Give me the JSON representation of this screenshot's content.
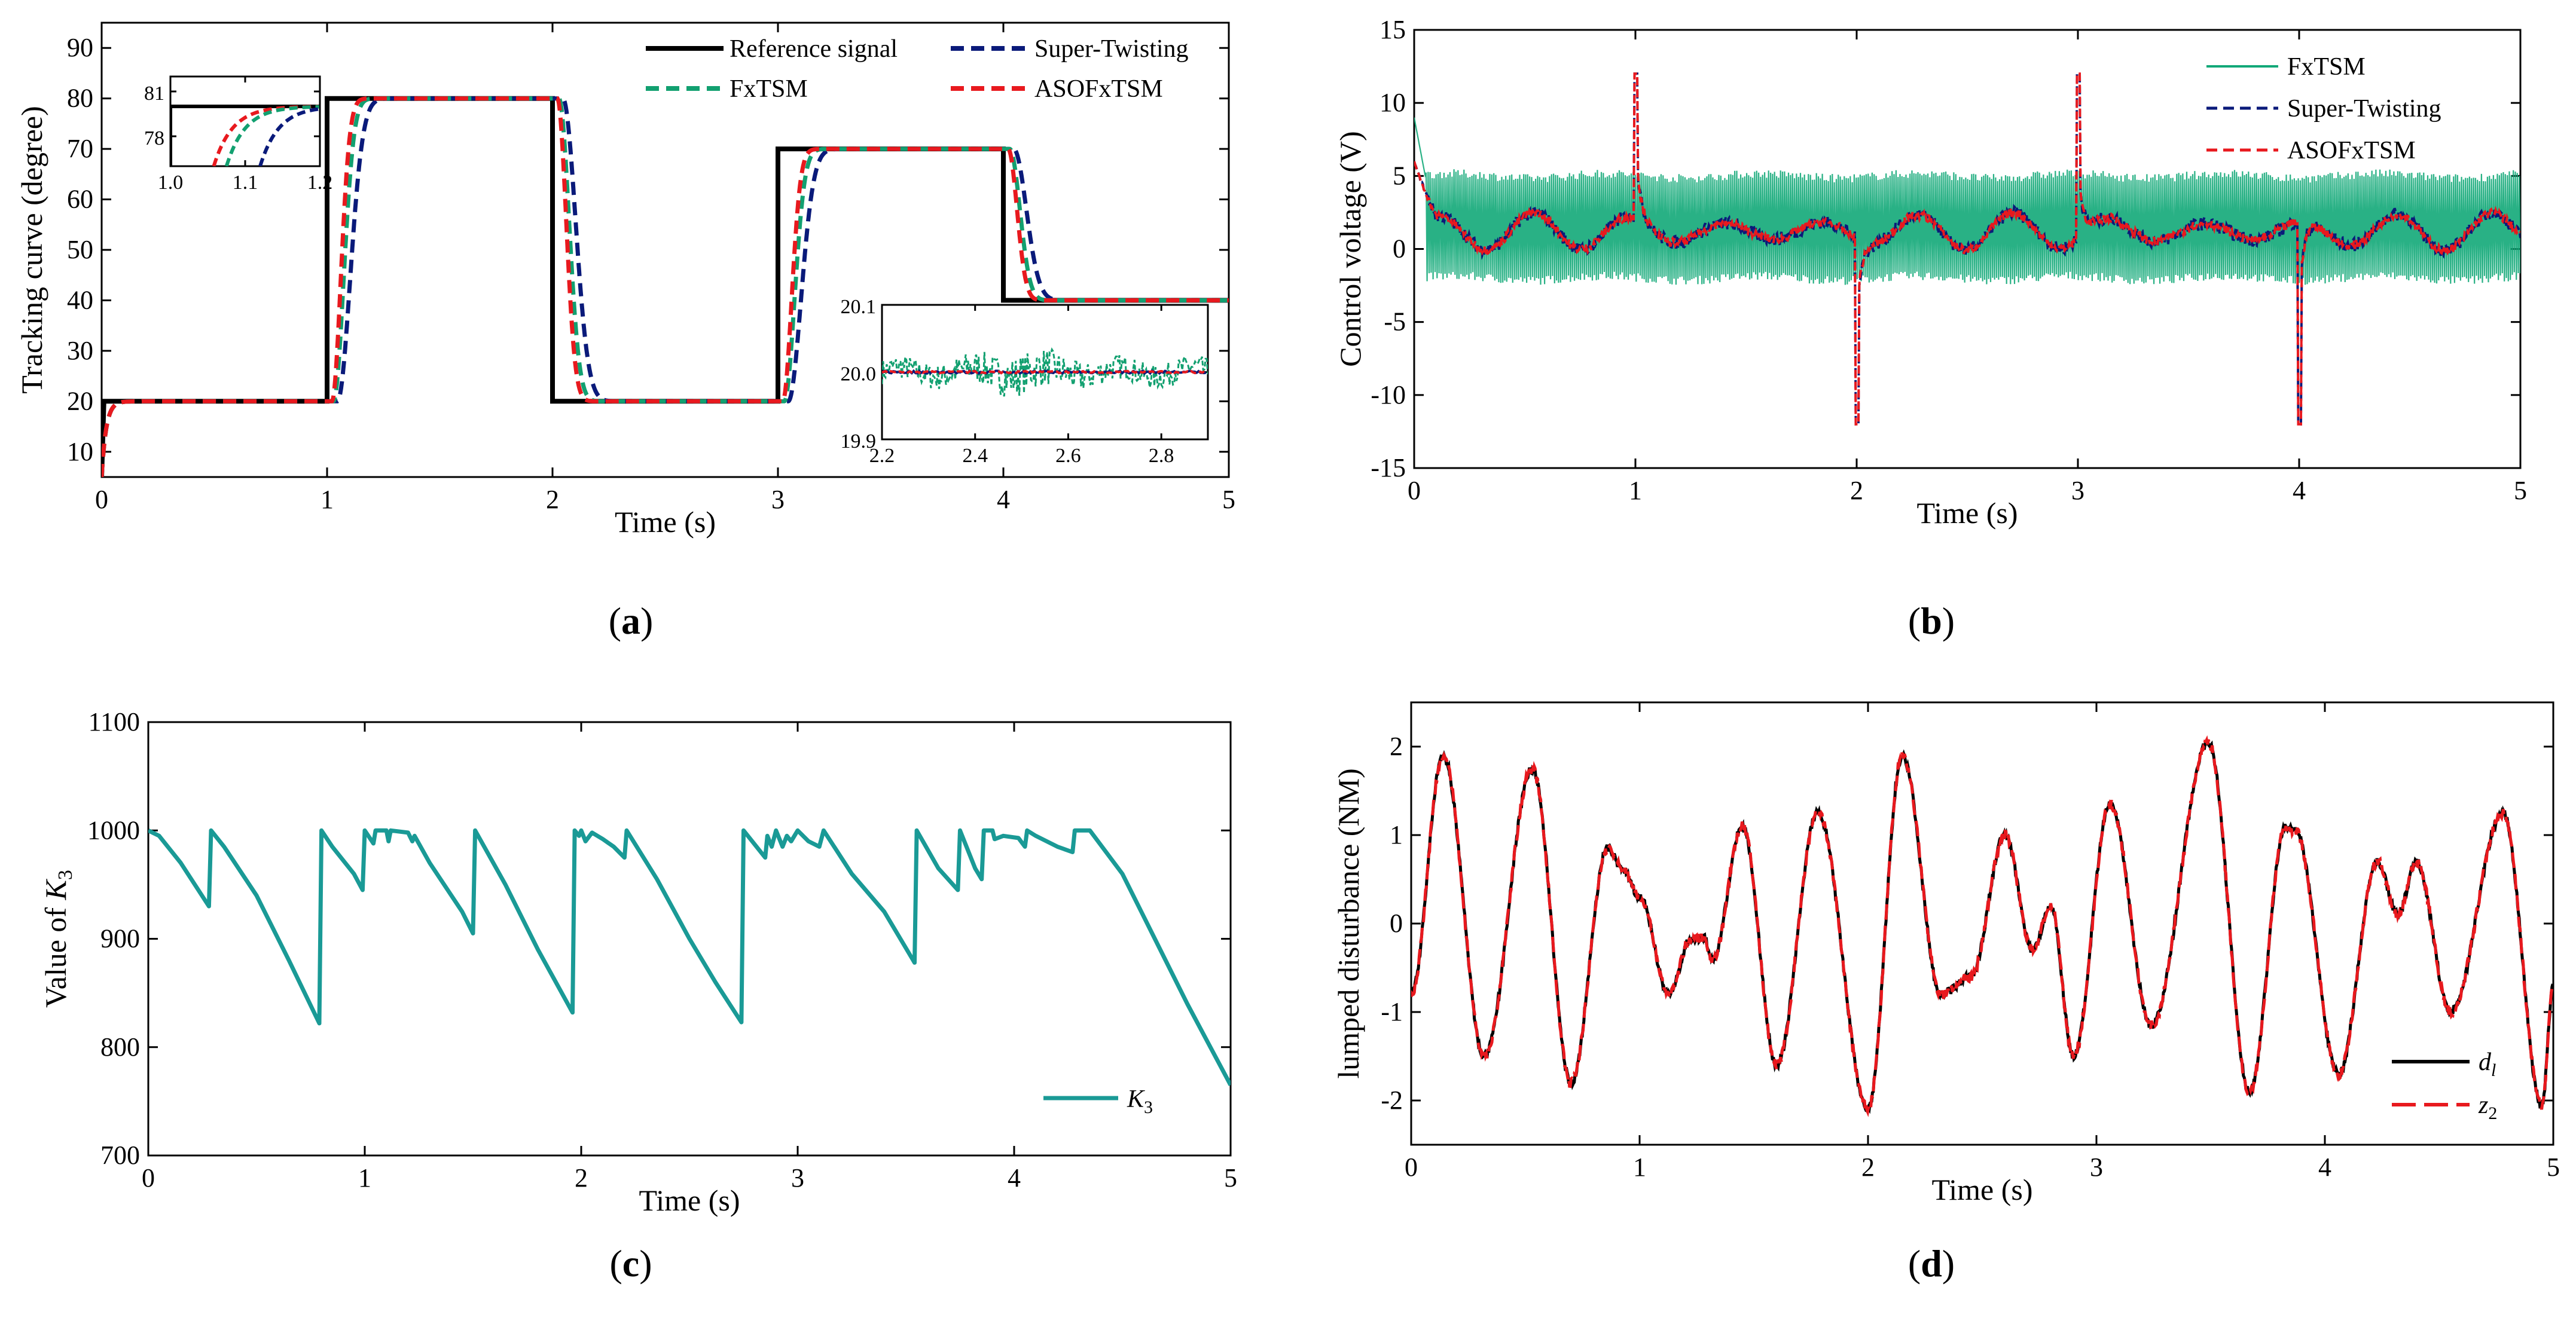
{
  "figure": {
    "captions": [
      {
        "open": "(",
        "letter": "a",
        "close": ")"
      },
      {
        "open": "(",
        "letter": "b",
        "close": ")"
      },
      {
        "open": "(",
        "letter": "c",
        "close": ")"
      },
      {
        "open": "(",
        "letter": "d",
        "close": ")"
      }
    ]
  },
  "chart_data": [
    {
      "id": "a",
      "type": "line",
      "xlabel": "Time (s)",
      "ylabel": "Tracking curve (degree)",
      "xlim": [
        0,
        5
      ],
      "ylim": [
        5,
        95
      ],
      "xticks": [
        0,
        1,
        2,
        3,
        4,
        5
      ],
      "yticks": [
        10,
        20,
        30,
        40,
        50,
        60,
        70,
        80,
        90
      ],
      "legend": [
        "Reference signal",
        "Super-Twisting",
        "FxTSM",
        "ASOFxTSM"
      ],
      "legend_position": "top-right",
      "series": [
        {
          "name": "Reference signal",
          "color": "#000000",
          "style": "solid",
          "points": [
            [
              0,
              5
            ],
            [
              0.01,
              20
            ],
            [
              1,
              20
            ],
            [
              1,
              80
            ],
            [
              2,
              80
            ],
            [
              2,
              20
            ],
            [
              3,
              20
            ],
            [
              3,
              70
            ],
            [
              4,
              70
            ],
            [
              4,
              40
            ],
            [
              5,
              40
            ]
          ]
        },
        {
          "name": "Super-Twisting",
          "color": "#0a1a7a",
          "style": "dashed",
          "delay": 0.13,
          "rise": 0.1
        },
        {
          "name": "FxTSM",
          "color": "#12a070",
          "style": "dashed",
          "delay": 0.08,
          "rise": 0.08
        },
        {
          "name": "ASOFxTSM",
          "color": "#e8191e",
          "style": "dashed",
          "delay": 0.06,
          "rise": 0.07
        }
      ],
      "insets": [
        {
          "xlim": [
            1.0,
            1.2
          ],
          "ylim": [
            76,
            82
          ],
          "xticks": [
            "1.0",
            "1.1",
            "1.2"
          ],
          "yticks": [
            "78",
            "81"
          ],
          "position": "top-left"
        },
        {
          "xlim": [
            2.2,
            2.9
          ],
          "ylim": [
            19.9,
            20.1
          ],
          "xticks": [
            "2.2",
            "2.4",
            "2.6",
            "2.8"
          ],
          "yticks": [
            "19.9",
            "20.0",
            "20.1"
          ],
          "position": "bottom-right"
        }
      ]
    },
    {
      "id": "b",
      "type": "line",
      "xlabel": "Time (s)",
      "ylabel": "Control voltage (V)",
      "xlim": [
        0,
        5
      ],
      "ylim": [
        -15,
        15
      ],
      "xticks": [
        0,
        1,
        2,
        3,
        4,
        5
      ],
      "yticks": [
        -15,
        -10,
        -5,
        0,
        5,
        10,
        15
      ],
      "legend": [
        "FxTSM",
        "Super-Twisting",
        "ASOFxTSM"
      ],
      "legend_position": "top-right",
      "series": [
        {
          "name": "FxTSM",
          "color": "#12a878",
          "style": "solid",
          "band": [
            -2,
            5
          ]
        },
        {
          "name": "Super-Twisting",
          "color": "#0a1a7a",
          "style": "dashed"
        },
        {
          "name": "ASOFxTSM",
          "color": "#e8191e",
          "style": "dashed"
        }
      ],
      "spikes": [
        [
          1.0,
          12
        ],
        [
          2.0,
          -12
        ],
        [
          3.0,
          12
        ],
        [
          4.0,
          -12
        ]
      ]
    },
    {
      "id": "c",
      "type": "line",
      "xlabel": "Time (s)",
      "ylabel_pre": "Value of ",
      "ylabel_var": "K",
      "ylabel_sub": "3",
      "xlim": [
        0,
        5
      ],
      "ylim": [
        700,
        1100
      ],
      "xticks": [
        0,
        1,
        2,
        3,
        4,
        5
      ],
      "yticks": [
        700,
        800,
        900,
        1000,
        1100
      ],
      "legend_var": "K",
      "legend_sub": "3",
      "legend_position": "bottom-right",
      "series": [
        {
          "name": "K3",
          "color": "#1a9a96",
          "points": [
            [
              0,
              1000
            ],
            [
              0.05,
              995
            ],
            [
              0.15,
              970
            ],
            [
              0.28,
              930
            ],
            [
              0.29,
              1000
            ],
            [
              0.35,
              985
            ],
            [
              0.5,
              940
            ],
            [
              0.65,
              880
            ],
            [
              0.79,
              822
            ],
            [
              0.8,
              1000
            ],
            [
              0.85,
              985
            ],
            [
              0.95,
              960
            ],
            [
              0.99,
              945
            ],
            [
              1.0,
              1000
            ],
            [
              1.04,
              988
            ],
            [
              1.05,
              1000
            ],
            [
              1.1,
              1000
            ],
            [
              1.11,
              990
            ],
            [
              1.12,
              1000
            ],
            [
              1.2,
              998
            ],
            [
              1.22,
              990
            ],
            [
              1.23,
              995
            ],
            [
              1.3,
              970
            ],
            [
              1.45,
              925
            ],
            [
              1.5,
              905
            ],
            [
              1.51,
              1000
            ],
            [
              1.65,
              950
            ],
            [
              1.8,
              890
            ],
            [
              1.96,
              832
            ],
            [
              1.97,
              1000
            ],
            [
              1.99,
              995
            ],
            [
              2.0,
              1000
            ],
            [
              2.02,
              990
            ],
            [
              2.05,
              998
            ],
            [
              2.1,
              992
            ],
            [
              2.15,
              985
            ],
            [
              2.2,
              975
            ],
            [
              2.21,
              1000
            ],
            [
              2.35,
              955
            ],
            [
              2.5,
              900
            ],
            [
              2.62,
              860
            ],
            [
              2.74,
              823
            ],
            [
              2.75,
              1000
            ],
            [
              2.85,
              975
            ],
            [
              2.86,
              995
            ],
            [
              2.88,
              985
            ],
            [
              2.9,
              1000
            ],
            [
              2.93,
              985
            ],
            [
              2.95,
              995
            ],
            [
              2.97,
              990
            ],
            [
              3.0,
              1000
            ],
            [
              3.05,
              990
            ],
            [
              3.1,
              985
            ],
            [
              3.12,
              1000
            ],
            [
              3.25,
              960
            ],
            [
              3.4,
              925
            ],
            [
              3.54,
              878
            ],
            [
              3.55,
              1000
            ],
            [
              3.65,
              965
            ],
            [
              3.74,
              945
            ],
            [
              3.75,
              1000
            ],
            [
              3.82,
              965
            ],
            [
              3.85,
              955
            ],
            [
              3.86,
              1000
            ],
            [
              3.9,
              1000
            ],
            [
              3.91,
              992
            ],
            [
              3.95,
              995
            ],
            [
              4.02,
              993
            ],
            [
              4.05,
              985
            ],
            [
              4.06,
              1000
            ],
            [
              4.1,
              995
            ],
            [
              4.2,
              985
            ],
            [
              4.27,
              980
            ],
            [
              4.28,
              1000
            ],
            [
              4.35,
              1000
            ],
            [
              4.5,
              960
            ],
            [
              4.65,
              900
            ],
            [
              4.8,
              840
            ],
            [
              5,
              765
            ]
          ]
        }
      ]
    },
    {
      "id": "d",
      "type": "line",
      "xlabel": "Time (s)",
      "ylabel": "lumped disturbance (NM)",
      "xlim": [
        0,
        5
      ],
      "ylim": [
        -2.5,
        2.5
      ],
      "xticks": [
        0,
        1,
        2,
        3,
        4,
        5
      ],
      "yticks": [
        -2,
        -1,
        0,
        1,
        2
      ],
      "legend": [
        {
          "var": "d",
          "sub": "l"
        },
        {
          "var": "z",
          "sub": "2"
        }
      ],
      "legend_position": "bottom-right",
      "series": [
        {
          "name": "d_l",
          "color": "#000000",
          "style": "solid"
        },
        {
          "name": "z_2",
          "color": "#e8191e",
          "style": "dashed"
        }
      ],
      "extrema": [
        [
          0,
          -0.8
        ],
        [
          0.14,
          1.9
        ],
        [
          0.32,
          -1.5
        ],
        [
          0.53,
          1.75
        ],
        [
          0.7,
          -1.8
        ],
        [
          0.86,
          0.85
        ],
        [
          0.93,
          0.6
        ],
        [
          1.0,
          0.3
        ],
        [
          1.13,
          -0.8
        ],
        [
          1.22,
          -0.2
        ],
        [
          1.28,
          -0.15
        ],
        [
          1.32,
          -0.4
        ],
        [
          1.45,
          1.1
        ],
        [
          1.6,
          -1.6
        ],
        [
          1.78,
          1.25
        ],
        [
          2.0,
          -2.1
        ],
        [
          2.15,
          1.9
        ],
        [
          2.32,
          -0.8
        ],
        [
          2.45,
          -0.6
        ],
        [
          2.6,
          1.0
        ],
        [
          2.72,
          -0.3
        ],
        [
          2.8,
          0.2
        ],
        [
          2.9,
          -1.5
        ],
        [
          3.06,
          1.35
        ],
        [
          3.24,
          -1.15
        ],
        [
          3.49,
          2.05
        ],
        [
          3.67,
          -1.9
        ],
        [
          3.83,
          1.1
        ],
        [
          3.87,
          1.05
        ],
        [
          4.06,
          -1.7
        ],
        [
          4.23,
          0.7
        ],
        [
          4.32,
          0.1
        ],
        [
          4.4,
          0.7
        ],
        [
          4.55,
          -1.0
        ],
        [
          4.78,
          1.25
        ],
        [
          4.95,
          -2.05
        ],
        [
          5,
          -0.7
        ]
      ]
    }
  ]
}
